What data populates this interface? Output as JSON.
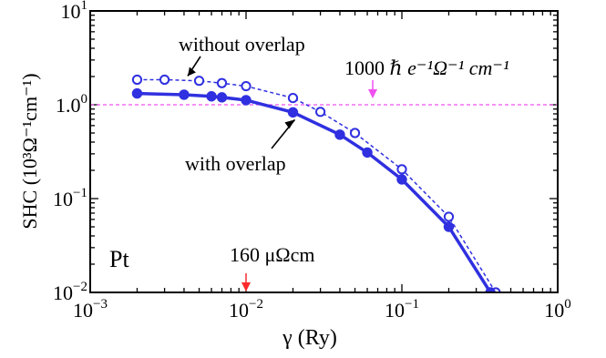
{
  "chart_data": {
    "type": "line",
    "panel_label": "Pt",
    "xlabel": "γ (Ry)",
    "ylabel": "SHC (10³Ω⁻¹cm⁻¹)",
    "xscale": "log",
    "yscale": "log",
    "xlim": [
      0.001,
      1
    ],
    "ylim": [
      0.01,
      10
    ],
    "x_ticks": [
      {
        "value": 0.001,
        "mantissa": "10",
        "exp": "−3"
      },
      {
        "value": 0.01,
        "mantissa": "10",
        "exp": "−2"
      },
      {
        "value": 0.1,
        "mantissa": "10",
        "exp": "−1"
      },
      {
        "value": 1,
        "mantissa": "10",
        "exp": "0"
      }
    ],
    "y_ticks": [
      {
        "value": 0.01,
        "mantissa": "10",
        "exp": "−2"
      },
      {
        "value": 0.1,
        "mantissa": "10",
        "exp": "−1"
      },
      {
        "value": 1,
        "mantissa": "1.0",
        "exp": "0"
      },
      {
        "value": 10,
        "mantissa": "10",
        "exp": "1"
      }
    ],
    "series": [
      {
        "name": "without overlap",
        "marker": "open-circle",
        "line": "dashed",
        "color": "#3030e0",
        "x": [
          0.002,
          0.003,
          0.005,
          0.007,
          0.01,
          0.02,
          0.03,
          0.05,
          0.1,
          0.2,
          0.4
        ],
        "y": [
          1.85,
          1.85,
          1.8,
          1.7,
          1.58,
          1.18,
          0.84,
          0.5,
          0.205,
          0.064,
          0.01
        ]
      },
      {
        "name": "with overlap",
        "marker": "filled-circle",
        "line": "solid",
        "color": "#3030e0",
        "x": [
          0.002,
          0.004,
          0.006,
          0.007,
          0.01,
          0.02,
          0.04,
          0.06,
          0.1,
          0.2,
          0.37
        ],
        "y": [
          1.32,
          1.28,
          1.23,
          1.2,
          1.12,
          0.83,
          0.48,
          0.31,
          0.16,
          0.05,
          0.01
        ]
      }
    ],
    "reference_line": {
      "y": 1.0,
      "color": "#f050f0",
      "label_main": "1000",
      "label_rest": "e⁻¹Ω⁻¹ cm⁻¹",
      "hbar": "ℏ",
      "arrow_x": 0.065
    },
    "resistivity_marker": {
      "x": 0.01,
      "label": "160 μΩcm",
      "color": "#ff2a2a"
    },
    "annotations": [
      {
        "text": "without overlap",
        "target_x": 0.004,
        "target_y": 1.85
      },
      {
        "text": "with overlap",
        "target_x": 0.02,
        "target_y": 0.83
      }
    ]
  }
}
